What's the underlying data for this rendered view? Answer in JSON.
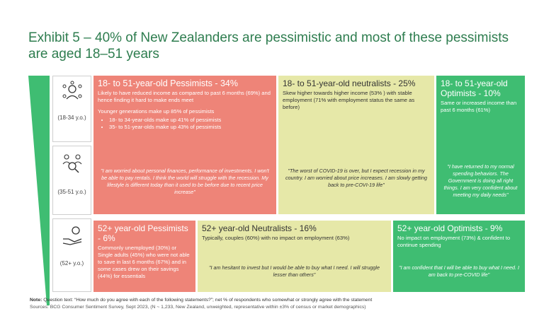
{
  "title": "Exhibit 5 – 40% of New Zealanders are pessimistic and most of these pessimists are aged 18–51 years",
  "age_groups": [
    {
      "label": "(18-34 y.o.)",
      "icon": "person-network-icon"
    },
    {
      "label": "(35-51 y.o.)",
      "icon": "group-search-icon"
    },
    {
      "label": "(52+ y.o.)",
      "icon": "hand-coin-icon"
    }
  ],
  "panels": {
    "young_pessimists": {
      "title": "18- to 51-year-old Pessimists - 34%",
      "body1": "Likely to have reduced income as compared to past 6 months (69%) and hence finding it hard to make ends meet",
      "body2": "Younger generations make up 85% of pessimists",
      "bullets": [
        "18- to 34-year-olds make up 41% of pessimists",
        "35- to 51-year-olds make up 43% of pessimists"
      ],
      "quote": "\"I am worried about personal finances, performance of investments. I won't be able to pay rentals. I think the world will struggle with the recession. My lifestyle is different today than it used to be before due to recent price increase\""
    },
    "young_neutralists": {
      "title": "18- to 51-year-old neutralists - 25%",
      "body": "Skew higher towards higher income (53% ) with stable employment (71% with employment status the same as before)",
      "quote": "\"The worst of COVID-19 is over, but I expect recession in my country. I am worried about price increases. I am slowly getting back to pre-COVI-19 life\""
    },
    "young_optimists": {
      "title": "18- to 51-year-old Optimists - 10%",
      "body": "Same or increased income than past 6 months (61%)",
      "quote": "\"I have returned to my normal spending behaviors. The Government is doing all right things. I am very confident about meeting my daily needs\""
    },
    "old_pessimists": {
      "title": "52+ year-old Pessimists - 6%",
      "body": "Commonly unemployed (30%) or Single adults (45%) who were not able to save in last 6 months (67%) and in some cases drew on their savings (44%) for essentials"
    },
    "old_neutralists": {
      "title": "52+ year-old  Neutralists - 16%",
      "body": "Typically, couples (60%) with no impact on employment (63%)",
      "quote": "\"I am hesitant to invest but I would be able to buy what I need. I will struggle lesser than others\""
    },
    "old_optimists": {
      "title": "52+ year-old Optimists - 9%",
      "body": "No impact on employment (73%) & confident to continue spending",
      "quote": "\"I am confident that I will be able to buy what I need.  I am back to pre-COVID life\""
    }
  },
  "note": {
    "label": "Note:",
    "text": " Question text: “How much do you agree with each of the following statements?”; net % of respondents who somewhat or strongly agree with the statement"
  },
  "sources": "Sources:  BCG Consumer Sentiment Survey, Sept 2023, (N ~  1,233,  New Zealand,  unweighted, representative within ±3% of census or market demographics)",
  "colors": {
    "red": "#ee8478",
    "yellow": "#e6e8a8",
    "green": "#3fbd72",
    "title": "#2e7d4f"
  }
}
